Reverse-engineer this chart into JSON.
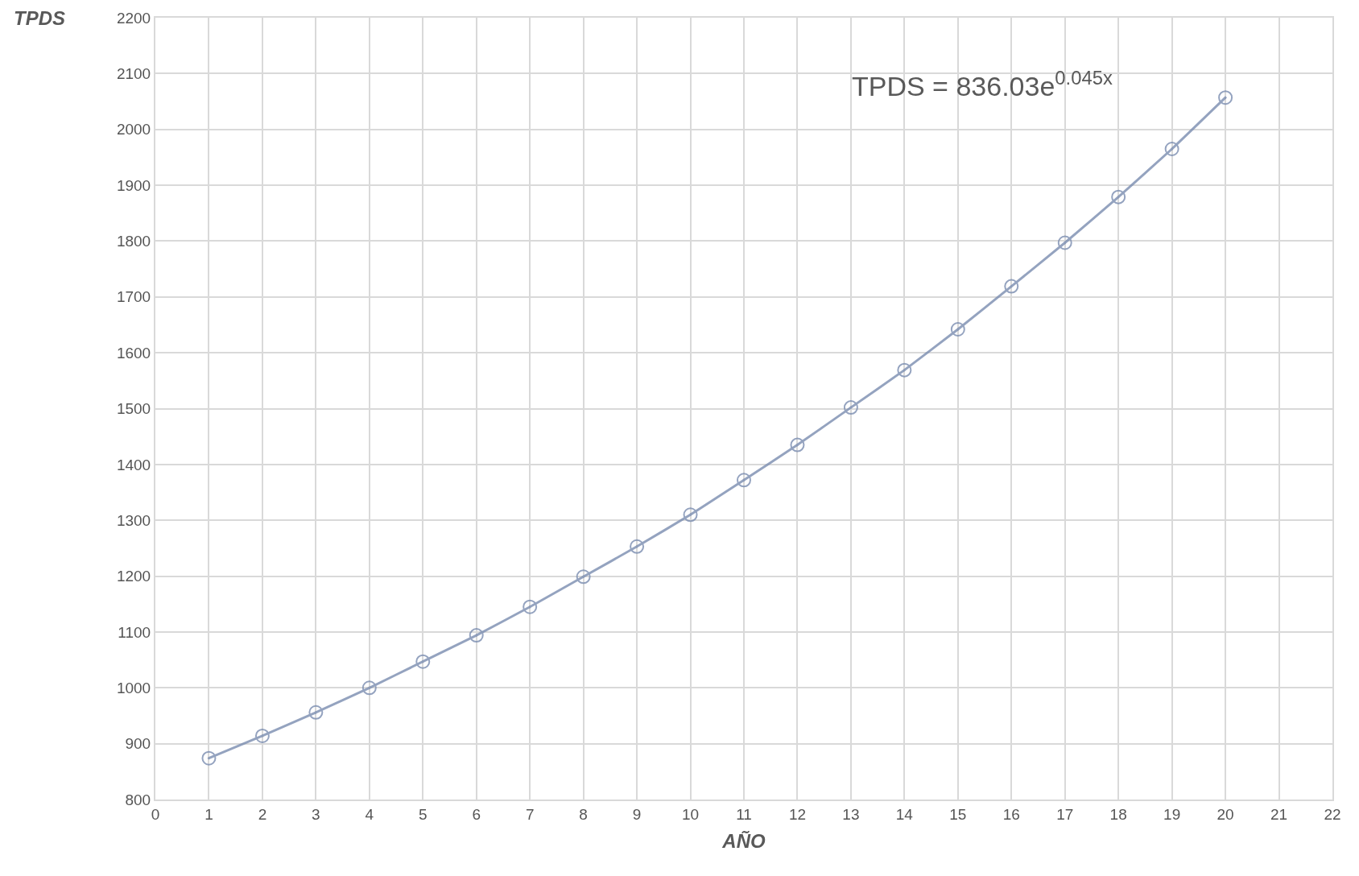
{
  "chart_data": {
    "type": "line",
    "xlabel": "AÑO",
    "ylabel": "TPDS",
    "x": [
      1,
      2,
      3,
      4,
      5,
      6,
      7,
      8,
      9,
      10,
      11,
      12,
      13,
      14,
      15,
      16,
      17,
      18,
      19,
      20
    ],
    "series": [
      {
        "color": "#7a8cb0",
        "values": [
          874,
          914,
          956,
          1000,
          1047,
          1094,
          1145,
          1199,
          1253,
          1310,
          1372,
          1435,
          1502,
          1569,
          1642,
          1719,
          1797,
          1879,
          1965,
          2057
        ]
      }
    ],
    "xlim": [
      0,
      22
    ],
    "xticks": [
      0,
      1,
      2,
      3,
      4,
      5,
      6,
      7,
      8,
      9,
      10,
      11,
      12,
      13,
      14,
      15,
      16,
      17,
      18,
      19,
      20,
      21,
      22
    ],
    "ylim": [
      800,
      2200
    ],
    "yticks": [
      800,
      900,
      1000,
      1100,
      1200,
      1300,
      1400,
      1500,
      1600,
      1700,
      1800,
      1900,
      2000,
      2100,
      2200
    ],
    "grid": true,
    "marker": "circle",
    "line_style": "solid",
    "annotations": [
      "TPDS = 836.03e$^{0.045x}$"
    ]
  }
}
